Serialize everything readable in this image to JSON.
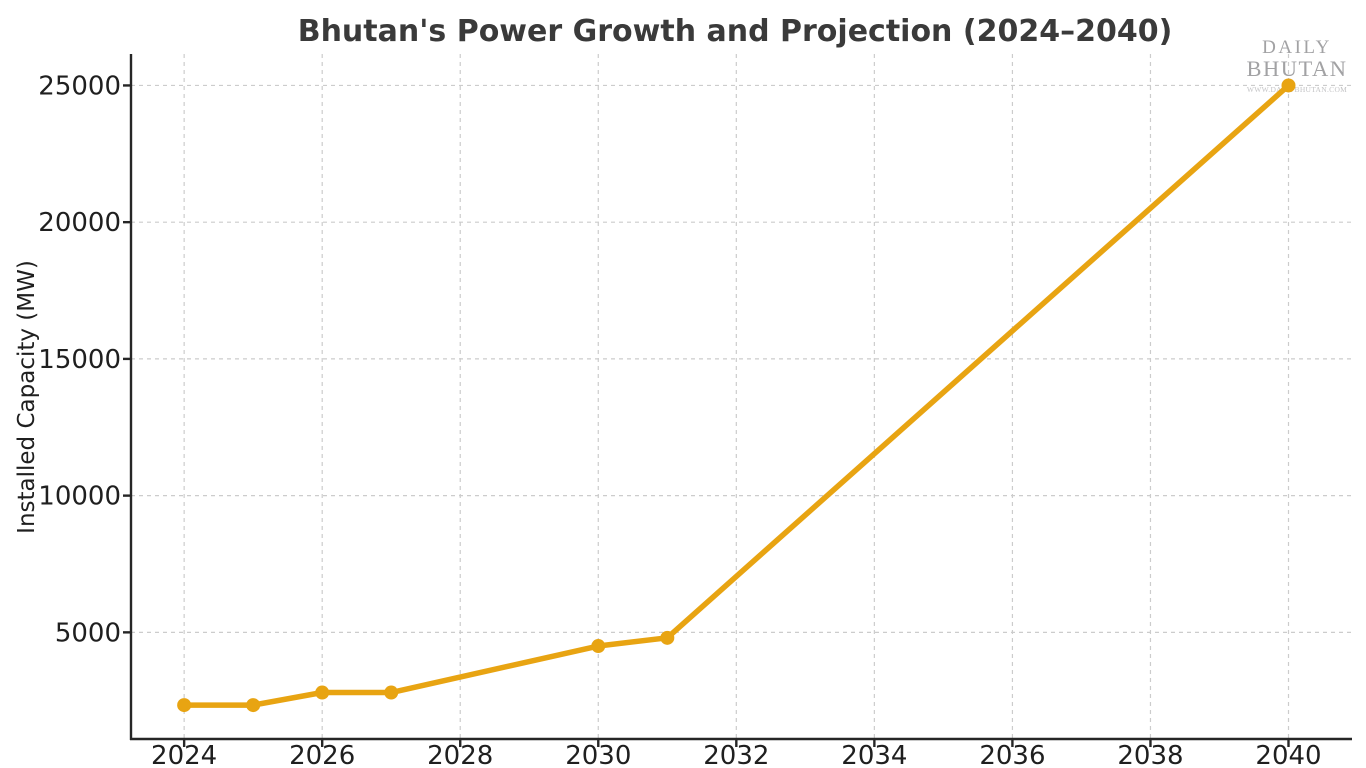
{
  "header": {
    "title": "Bhutan's Power Growth and Projection (2024–2040)"
  },
  "watermark": {
    "line1": "DAILY",
    "line2": "BHUTAN",
    "line3": "WWW.DAILYBHUTAN.COM"
  },
  "chart_data": {
    "type": "line",
    "title": "Bhutan's Power Growth and Projection (2024–2040)",
    "xlabel": "",
    "ylabel": "Installed Capacity (MW)",
    "series": [
      {
        "name": "Installed Capacity (MW)",
        "x": [
          2024,
          2025,
          2026,
          2027,
          2030,
          2031,
          2040
        ],
        "y": [
          2340,
          2340,
          2800,
          2800,
          4500,
          4800,
          25000
        ]
      }
    ],
    "xticks": [
      2024,
      2026,
      2028,
      2030,
      2032,
      2034,
      2036,
      2038,
      2040
    ],
    "yticks": [
      5000,
      10000,
      15000,
      20000,
      25000
    ],
    "xlim": [
      2023.23,
      2040.92
    ],
    "ylim": [
      1100,
      26150
    ],
    "grid": true,
    "grid_style": "dashed",
    "legend": false,
    "line_color": "#E8A412",
    "marker": "circle",
    "spine_color": "#262626",
    "grid_color": "#cccccc"
  }
}
